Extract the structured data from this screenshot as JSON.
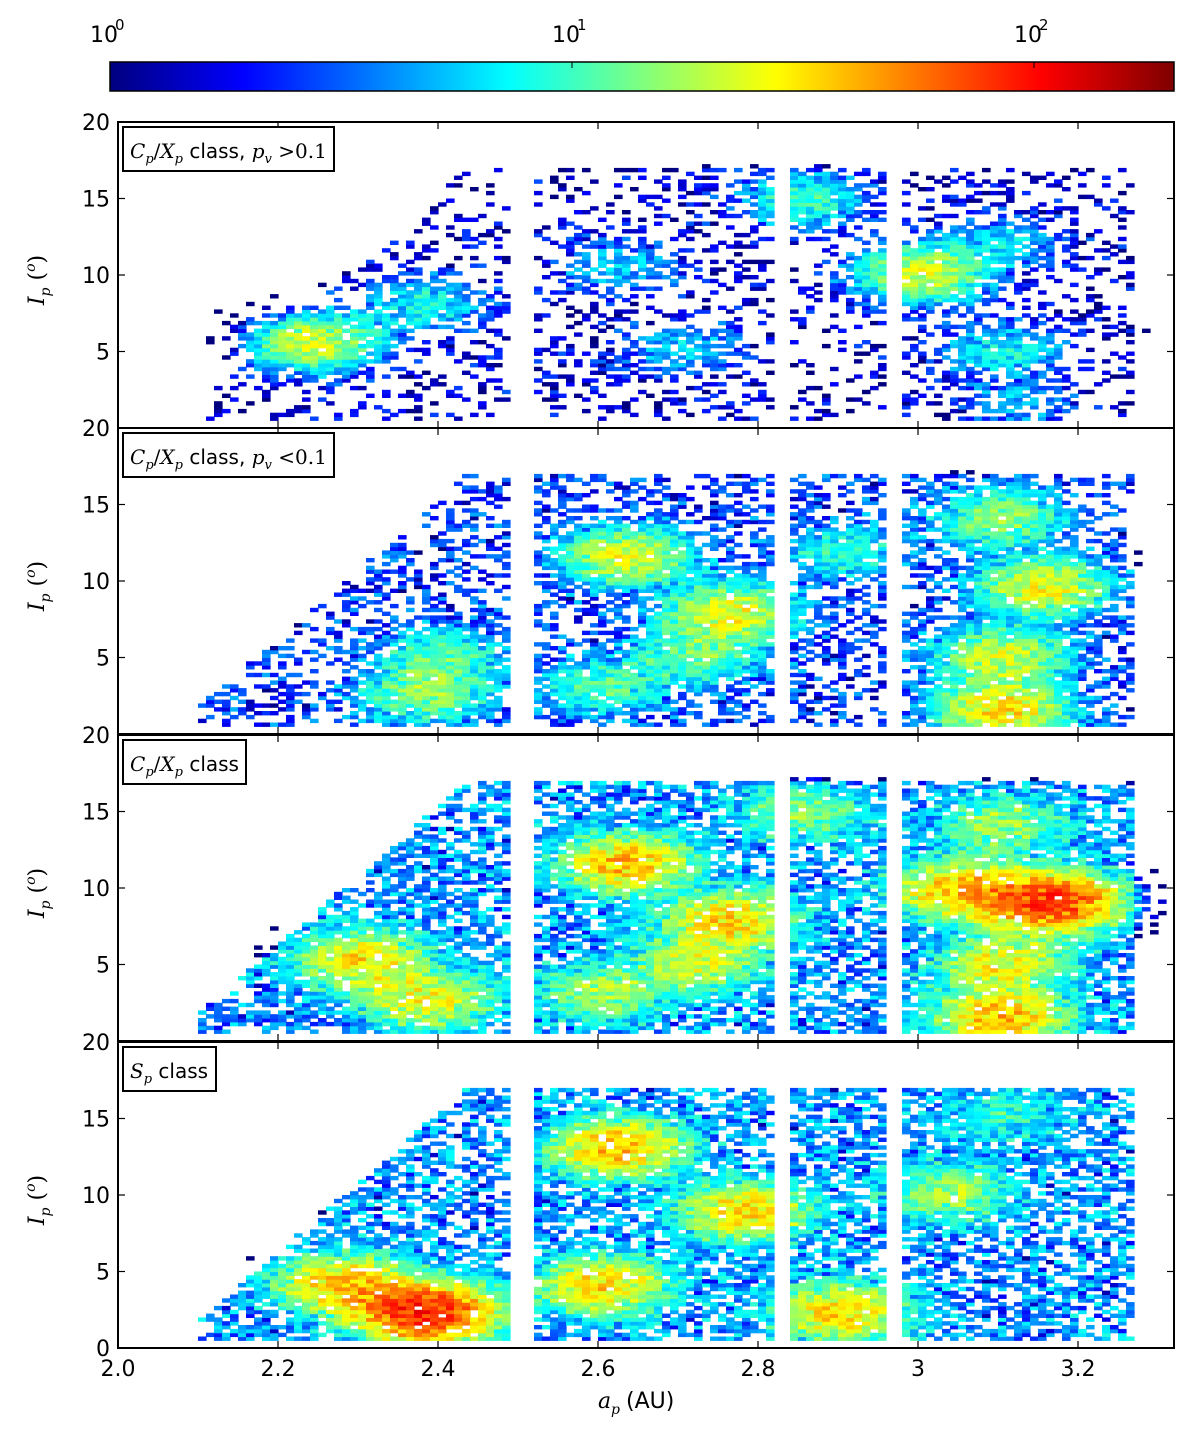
{
  "colorbar": {
    "scale": "log",
    "range": [
      1,
      150
    ],
    "ticks": [
      {
        "base": "10",
        "exp": "0",
        "value": 1
      },
      {
        "base": "10",
        "exp": "1",
        "value": 10
      },
      {
        "base": "10",
        "exp": "2",
        "value": 100
      }
    ],
    "colormap": "jet",
    "stops": [
      "#00007f",
      "#0000ff",
      "#007fff",
      "#00ffff",
      "#7fff7f",
      "#ffff00",
      "#ff7f00",
      "#ff0000",
      "#7f0000"
    ]
  },
  "chart_data": [
    {
      "type": "heatmap",
      "label_var": "C",
      "label_sub": "p",
      "label_sep": "/",
      "label_var2": "X",
      "label_sub2": "p",
      "label_word": "class",
      "label_cond_var": "p",
      "label_cond_sub": "v",
      "label_cond": ">0.1",
      "xlim": [
        2.0,
        3.32
      ],
      "ylim": [
        0,
        20
      ],
      "xticks": [
        "2.0",
        "2.2",
        "2.4",
        "2.6",
        "2.8",
        "3",
        "3.2"
      ],
      "yticks": [
        "5",
        "10",
        "15",
        "20"
      ],
      "clusters": [
        {
          "a": 2.24,
          "i": 5.5,
          "peak": 18
        },
        {
          "a": 2.38,
          "i": 8.0,
          "peak": 6
        },
        {
          "a": 2.62,
          "i": 10.5,
          "peak": 4
        },
        {
          "a": 2.7,
          "i": 5.0,
          "peak": 4
        },
        {
          "a": 2.85,
          "i": 14.8,
          "peak": 8
        },
        {
          "a": 3.0,
          "i": 10.0,
          "peak": 18
        },
        {
          "a": 3.1,
          "i": 5.0,
          "peak": 6
        },
        {
          "a": 3.1,
          "i": 12.0,
          "peak": 4
        },
        {
          "a": 3.12,
          "i": 1.5,
          "peak": 3
        }
      ]
    },
    {
      "type": "heatmap",
      "label_var": "C",
      "label_sub": "p",
      "label_sep": "/",
      "label_var2": "X",
      "label_sub2": "p",
      "label_word": "class",
      "label_cond_var": "p",
      "label_cond_sub": "v",
      "label_cond": "<0.1",
      "xlim": [
        2.0,
        3.32
      ],
      "ylim": [
        0,
        20
      ],
      "xticks": [
        "2.0",
        "2.2",
        "2.4",
        "2.6",
        "2.8",
        "3",
        "3.2"
      ],
      "yticks": [
        "5",
        "10",
        "15",
        "20"
      ],
      "clusters": [
        {
          "a": 2.38,
          "i": 2.5,
          "peak": 12
        },
        {
          "a": 2.4,
          "i": 5.0,
          "peak": 8
        },
        {
          "a": 2.63,
          "i": 11.5,
          "peak": 18
        },
        {
          "a": 2.76,
          "i": 7.8,
          "peak": 20
        },
        {
          "a": 2.72,
          "i": 5.0,
          "peak": 10
        },
        {
          "a": 2.6,
          "i": 3.0,
          "peak": 8
        },
        {
          "a": 3.1,
          "i": 1.5,
          "peak": 25
        },
        {
          "a": 3.1,
          "i": 5.0,
          "peak": 18
        },
        {
          "a": 3.15,
          "i": 9.5,
          "peak": 20
        },
        {
          "a": 3.1,
          "i": 14.0,
          "peak": 12
        },
        {
          "a": 2.9,
          "i": 11.8,
          "peak": 6
        }
      ]
    },
    {
      "type": "heatmap",
      "label_var": "C",
      "label_sub": "p",
      "label_sep": "/",
      "label_var2": "X",
      "label_sub2": "p",
      "label_word": "class",
      "xlim": [
        2.0,
        3.32
      ],
      "ylim": [
        0,
        20
      ],
      "xticks": [
        "2.0",
        "2.2",
        "2.4",
        "2.6",
        "2.8",
        "3",
        "3.2"
      ],
      "yticks": [
        "5",
        "10",
        "15",
        "20"
      ],
      "clusters": [
        {
          "a": 2.3,
          "i": 5.2,
          "peak": 22
        },
        {
          "a": 2.38,
          "i": 2.6,
          "peak": 20
        },
        {
          "a": 2.63,
          "i": 11.5,
          "peak": 30
        },
        {
          "a": 2.76,
          "i": 7.8,
          "peak": 25
        },
        {
          "a": 2.72,
          "i": 5.0,
          "peak": 15
        },
        {
          "a": 2.6,
          "i": 3.0,
          "peak": 12
        },
        {
          "a": 3.05,
          "i": 9.8,
          "peak": 30
        },
        {
          "a": 3.16,
          "i": 9.0,
          "peak": 60
        },
        {
          "a": 3.1,
          "i": 1.5,
          "peak": 30
        },
        {
          "a": 3.1,
          "i": 5.0,
          "peak": 20
        },
        {
          "a": 3.1,
          "i": 14.0,
          "peak": 12
        },
        {
          "a": 2.85,
          "i": 14.8,
          "peak": 10
        }
      ]
    },
    {
      "type": "heatmap",
      "label_var": "S",
      "label_sub": "p",
      "label_word": "class",
      "xlim": [
        2.0,
        3.32
      ],
      "ylim": [
        0,
        20
      ],
      "xticks": [
        "2.0",
        "2.2",
        "2.4",
        "2.6",
        "2.8",
        "3",
        "3.2"
      ],
      "yticks": [
        "0",
        "5",
        "10",
        "15",
        "20"
      ],
      "clusters": [
        {
          "a": 2.28,
          "i": 4.0,
          "peak": 30
        },
        {
          "a": 2.38,
          "i": 2.2,
          "peak": 70
        },
        {
          "a": 2.62,
          "i": 13.0,
          "peak": 30
        },
        {
          "a": 2.6,
          "i": 4.0,
          "peak": 25
        },
        {
          "a": 2.78,
          "i": 8.8,
          "peak": 25
        },
        {
          "a": 2.9,
          "i": 2.2,
          "peak": 25
        },
        {
          "a": 3.03,
          "i": 10.0,
          "peak": 12
        },
        {
          "a": 3.1,
          "i": 15.0,
          "peak": 5
        }
      ]
    }
  ],
  "axes": {
    "ylabel_var": "I",
    "ylabel_sub": "p",
    "ylabel_unit": "(",
    "ylabel_deg": "o",
    "ylabel_close": ")",
    "xlabel_var": "a",
    "xlabel_sub": "p",
    "xlabel_unit": "(AU)"
  },
  "gaps": [
    [
      2.485,
      2.515
    ],
    [
      2.815,
      2.835
    ],
    [
      2.955,
      2.97
    ]
  ]
}
